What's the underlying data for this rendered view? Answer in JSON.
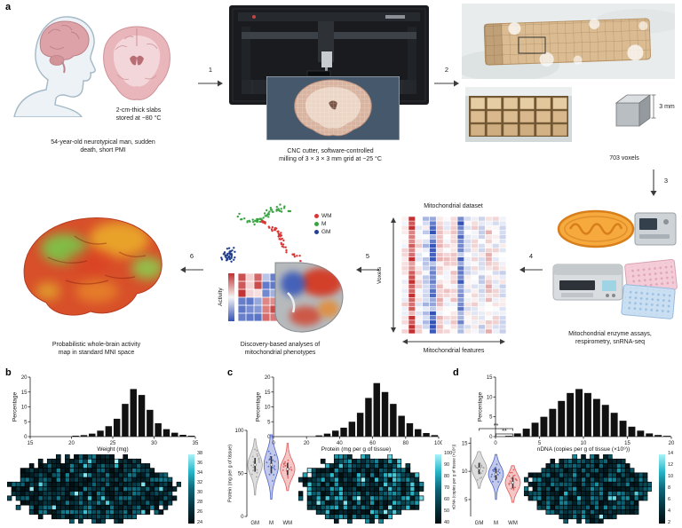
{
  "figure": {
    "panel_a": {
      "label": "a",
      "step_numbers": [
        "1",
        "2",
        "3",
        "4",
        "5",
        "6"
      ],
      "donor_slab_caption": "2-cm-thick slabs\nstored at −80 °C",
      "donor_caption": "54-year-old neurotypical man, sudden\ndeath, short PMI",
      "cnc_caption": "CNC cutter, software-controlled\nmilling of 3 × 3 × 3 mm grid at −25 °C",
      "voxel_count_caption": "703 voxels",
      "cube_label": "3 mm",
      "dataset_title": "Mitochondrial dataset",
      "dataset_y_axis": "Voxels",
      "dataset_x_axis": "Mitochondrial features",
      "assays_caption": "Mitochondrial enzyme assays,\nrespirometry, snRNA-seq",
      "analyses_caption": "Discovery-based analyses of\nmitochondrial phenotypes",
      "activity_label": "Activity",
      "map_caption": "Probabilistic whole-brain activity\nmap in standard MNI space",
      "umap_legend": [
        {
          "label": "WM",
          "color": "#d93636"
        },
        {
          "label": "M",
          "color": "#3aa344"
        },
        {
          "label": "GM",
          "color": "#24418c"
        }
      ]
    },
    "panel_b": {
      "label": "b"
    },
    "panel_c": {
      "label": "c"
    },
    "panel_d": {
      "label": "d"
    }
  },
  "colors": {
    "heatmap_scale": [
      "#020e12",
      "#073540",
      "#0e6678",
      "#27b6c9",
      "#aaf3f9"
    ],
    "diverging_low": "#3353b8",
    "diverging_high": "#c43030",
    "histogram_bar": "#111111"
  },
  "chart_data": [
    {
      "id": "b_hist",
      "type": "bar",
      "xlabel": "Weight (mg)",
      "ylabel": "Percentage",
      "xlim": [
        15,
        35
      ],
      "ylim": [
        0,
        20
      ],
      "xticks": [
        15,
        20,
        25,
        30,
        35
      ],
      "yticks": [
        0,
        5,
        10,
        15,
        20
      ],
      "bin_start": 15,
      "bin_width": 1,
      "bar_color": "#111111",
      "values": [
        0,
        0,
        0,
        0,
        0,
        0.3,
        0.5,
        1,
        2,
        3.5,
        6,
        11,
        16,
        14,
        9,
        4.5,
        2.5,
        1.3,
        0.6,
        0.3
      ]
    },
    {
      "id": "c_hist",
      "type": "bar",
      "xlabel": "Protein (mg per g of tissue)",
      "ylabel": "Percentage",
      "xlim": [
        0,
        100
      ],
      "ylim": [
        0,
        20
      ],
      "xticks": [
        0,
        20,
        40,
        60,
        80,
        100
      ],
      "yticks": [
        0,
        5,
        10,
        15,
        20
      ],
      "bin_start": 0,
      "bin_width": 5,
      "bar_color": "#111111",
      "values": [
        0,
        0,
        0,
        0,
        0,
        0.4,
        1,
        2,
        3,
        5,
        8,
        13,
        18,
        15,
        11,
        7,
        4.5,
        2.5,
        1.2,
        0.5
      ]
    },
    {
      "id": "d_hist",
      "type": "bar",
      "xlabel": "nDNA (copies per g of tissue (×10⁹))",
      "ylabel": "Percentage",
      "xlim": [
        0,
        20
      ],
      "ylim": [
        0,
        15
      ],
      "xticks": [
        0,
        5,
        10,
        15,
        20
      ],
      "yticks": [
        0,
        5,
        10,
        15
      ],
      "bin_start": 0,
      "bin_width": 1,
      "bar_color": "#111111",
      "values": [
        0,
        0.2,
        0.8,
        2,
        3.5,
        5,
        7,
        9,
        11,
        12,
        11,
        9.5,
        8,
        6,
        4,
        2.5,
        1.5,
        0.8,
        0.4,
        0.2
      ]
    },
    {
      "id": "c_violin",
      "type": "violin",
      "ylabel": "Protein (mg per g of tissue)",
      "categories": [
        "GM",
        "M",
        "WM"
      ],
      "colors": [
        "#9d9d9d",
        "#4f63c2",
        "#e05c5c"
      ],
      "ylim": [
        0,
        100
      ],
      "yticks": [
        0,
        50,
        100
      ],
      "stats": [
        {
          "min": 25,
          "q1": 52,
          "median": 60,
          "q3": 68,
          "max": 90
        },
        {
          "min": 20,
          "q1": 50,
          "median": 60,
          "q3": 70,
          "max": 95
        },
        {
          "min": 30,
          "q1": 48,
          "median": 55,
          "q3": 62,
          "max": 85
        }
      ]
    },
    {
      "id": "d_violin",
      "type": "violin",
      "ylabel": "nDNA (copies per g of tissue (×10⁹))",
      "categories": [
        "GM",
        "M",
        "WM"
      ],
      "colors": [
        "#9d9d9d",
        "#4f63c2",
        "#e05c5c"
      ],
      "ylim": [
        2,
        16
      ],
      "yticks": [
        5,
        10,
        15
      ],
      "stats": [
        {
          "min": 7,
          "q1": 9.5,
          "median": 10.5,
          "q3": 11.5,
          "max": 13.5
        },
        {
          "min": 5,
          "q1": 8.5,
          "median": 9.5,
          "q3": 10.5,
          "max": 13
        },
        {
          "min": 4.5,
          "q1": 7,
          "median": 8,
          "q3": 9,
          "max": 11
        }
      ],
      "significance": [
        {
          "from": 0,
          "to": 2,
          "label": "**"
        },
        {
          "from": 1,
          "to": 2,
          "label": "**"
        }
      ]
    },
    {
      "id": "b_map",
      "type": "heatmap",
      "label": "Weight (mg)",
      "tone": 0.55,
      "colorbar_ticks": [
        38,
        36,
        34,
        32,
        30,
        28,
        26,
        24
      ]
    },
    {
      "id": "c_map",
      "type": "heatmap",
      "label": "Protein (mg per g of tissue)",
      "tone": 0.8,
      "colorbar_ticks": [
        100,
        90,
        80,
        70,
        60,
        50,
        40
      ]
    },
    {
      "id": "d_map",
      "type": "heatmap",
      "label": "nDNA (copies per g of tissue (×10⁹))",
      "tone": 0.6,
      "colorbar_ticks": [
        14,
        12,
        10,
        8,
        6,
        4,
        2
      ]
    }
  ]
}
